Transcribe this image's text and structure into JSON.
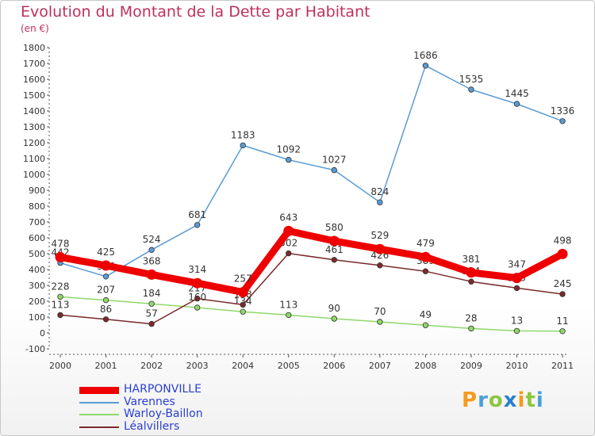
{
  "title": "Evolution du Montant de la Dette par Habitant",
  "subtitle": "(en €)",
  "brand": {
    "letters": [
      "P",
      "r",
      "o",
      "x",
      "i",
      "t",
      "i"
    ],
    "colors": [
      "#f59a1a",
      "#4aa0d8",
      "#8cc63f",
      "#2a7fd0",
      "#f59a1a",
      "#8cc63f",
      "#4aa0d8"
    ]
  },
  "chart_data": {
    "type": "line",
    "title": "Evolution du Montant de la Dette par Habitant",
    "ylabel": "(en €)",
    "xlabel": "",
    "x": [
      "2000",
      "2001",
      "2002",
      "2003",
      "2004",
      "2005",
      "2006",
      "2007",
      "2008",
      "2009",
      "2010",
      "2011"
    ],
    "ylim": [
      -100,
      1800
    ],
    "yticks": [
      "-100",
      "0",
      "100",
      "200",
      "300",
      "400",
      "500",
      "600",
      "700",
      "800",
      "900",
      "1000",
      "1100",
      "1200",
      "1300",
      "1400",
      "1500",
      "1600",
      "1700",
      "1800"
    ],
    "grid": false,
    "legend_position": "bottom-left",
    "series": [
      {
        "name": "Varennes",
        "color": "#5b9bd5",
        "values": [
          442,
          356,
          524,
          681,
          1183,
          1092,
          1027,
          824,
          1686,
          1535,
          1445,
          1336
        ],
        "labels": [
          "442",
          "356",
          "524",
          "681",
          "1183",
          "1092",
          "1027",
          "824",
          "1686",
          "1535",
          "1445",
          "1336"
        ]
      },
      {
        "name": "Warloy-Baillon",
        "color": "#8fd86b",
        "values": [
          228,
          207,
          184,
          160,
          134,
          113,
          90,
          70,
          49,
          28,
          13,
          11
        ],
        "labels": [
          "228",
          "207",
          "184",
          "160",
          "134",
          "113",
          "90",
          "70",
          "49",
          "28",
          "13",
          "11"
        ]
      },
      {
        "name": "Léalvillers",
        "color": "#7a2a2a",
        "values": [
          113,
          86,
          57,
          217,
          178,
          502,
          461,
          426,
          389,
          324,
          283,
          245
        ],
        "labels": [
          "113",
          "86",
          "57",
          "217",
          "178",
          "502",
          "461",
          "426",
          "389",
          "324",
          "283",
          "245"
        ]
      },
      {
        "name": "HARPONVILLE",
        "color": "#ee0000",
        "values": [
          478,
          425,
          368,
          314,
          257,
          643,
          580,
          529,
          479,
          381,
          347,
          498
        ],
        "labels": [
          "478",
          "425",
          "368",
          "314",
          "257",
          "643",
          "580",
          "529",
          "479",
          "381",
          "347",
          "498"
        ]
      }
    ]
  },
  "legend": [
    {
      "name": "HARPONVILLE",
      "color": "#ee0000",
      "text_color": "#2a3fd0"
    },
    {
      "name": "Varennes",
      "color": "#5b9bd5",
      "text_color": "#2a3fd0"
    },
    {
      "name": "Warloy-Baillon",
      "color": "#8fd86b",
      "text_color": "#2a3fd0"
    },
    {
      "name": "Léalvillers",
      "color": "#7a2a2a",
      "text_color": "#2a3fd0"
    }
  ]
}
